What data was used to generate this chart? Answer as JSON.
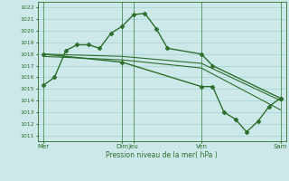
{
  "title": "",
  "xlabel": "Pression niveau de la mer( hPa )",
  "ylabel": "",
  "background_color": "#cce8e8",
  "grid_color": "#99cccc",
  "line_color": "#2d6e2d",
  "ylim": [
    1010.5,
    1022.5
  ],
  "yticks": [
    1011,
    1012,
    1013,
    1014,
    1015,
    1016,
    1017,
    1018,
    1019,
    1020,
    1021,
    1022
  ],
  "xtick_labels": [
    "Mer",
    "Dim",
    "Jeu",
    "Ven",
    "Sam"
  ],
  "xtick_positions": [
    0,
    7,
    8,
    14,
    21
  ],
  "vlines": [
    0,
    7,
    8,
    14,
    21
  ],
  "series": [
    {
      "x": [
        0,
        1,
        2,
        3,
        4,
        5,
        6,
        7,
        8,
        9,
        10,
        11,
        14,
        15,
        21
      ],
      "y": [
        1015.3,
        1016.0,
        1018.3,
        1018.8,
        1018.8,
        1018.5,
        1019.8,
        1020.4,
        1021.4,
        1021.5,
        1020.2,
        1018.5,
        1018.0,
        1017.0,
        1014.2
      ],
      "marker": "D",
      "markersize": 2.5,
      "linewidth": 1.0
    },
    {
      "x": [
        0,
        7,
        14,
        21
      ],
      "y": [
        1018.0,
        1017.8,
        1017.2,
        1014.0
      ],
      "marker": "None",
      "markersize": 0,
      "linewidth": 0.8
    },
    {
      "x": [
        0,
        7,
        14,
        21
      ],
      "y": [
        1017.8,
        1017.5,
        1016.8,
        1013.2
      ],
      "marker": "None",
      "markersize": 0,
      "linewidth": 0.8
    },
    {
      "x": [
        0,
        7,
        14,
        15,
        16,
        17,
        18,
        19,
        20,
        21
      ],
      "y": [
        1018.0,
        1017.3,
        1015.2,
        1015.2,
        1013.0,
        1012.4,
        1011.3,
        1012.2,
        1013.5,
        1014.2
      ],
      "marker": "D",
      "markersize": 2.5,
      "linewidth": 1.0
    }
  ]
}
